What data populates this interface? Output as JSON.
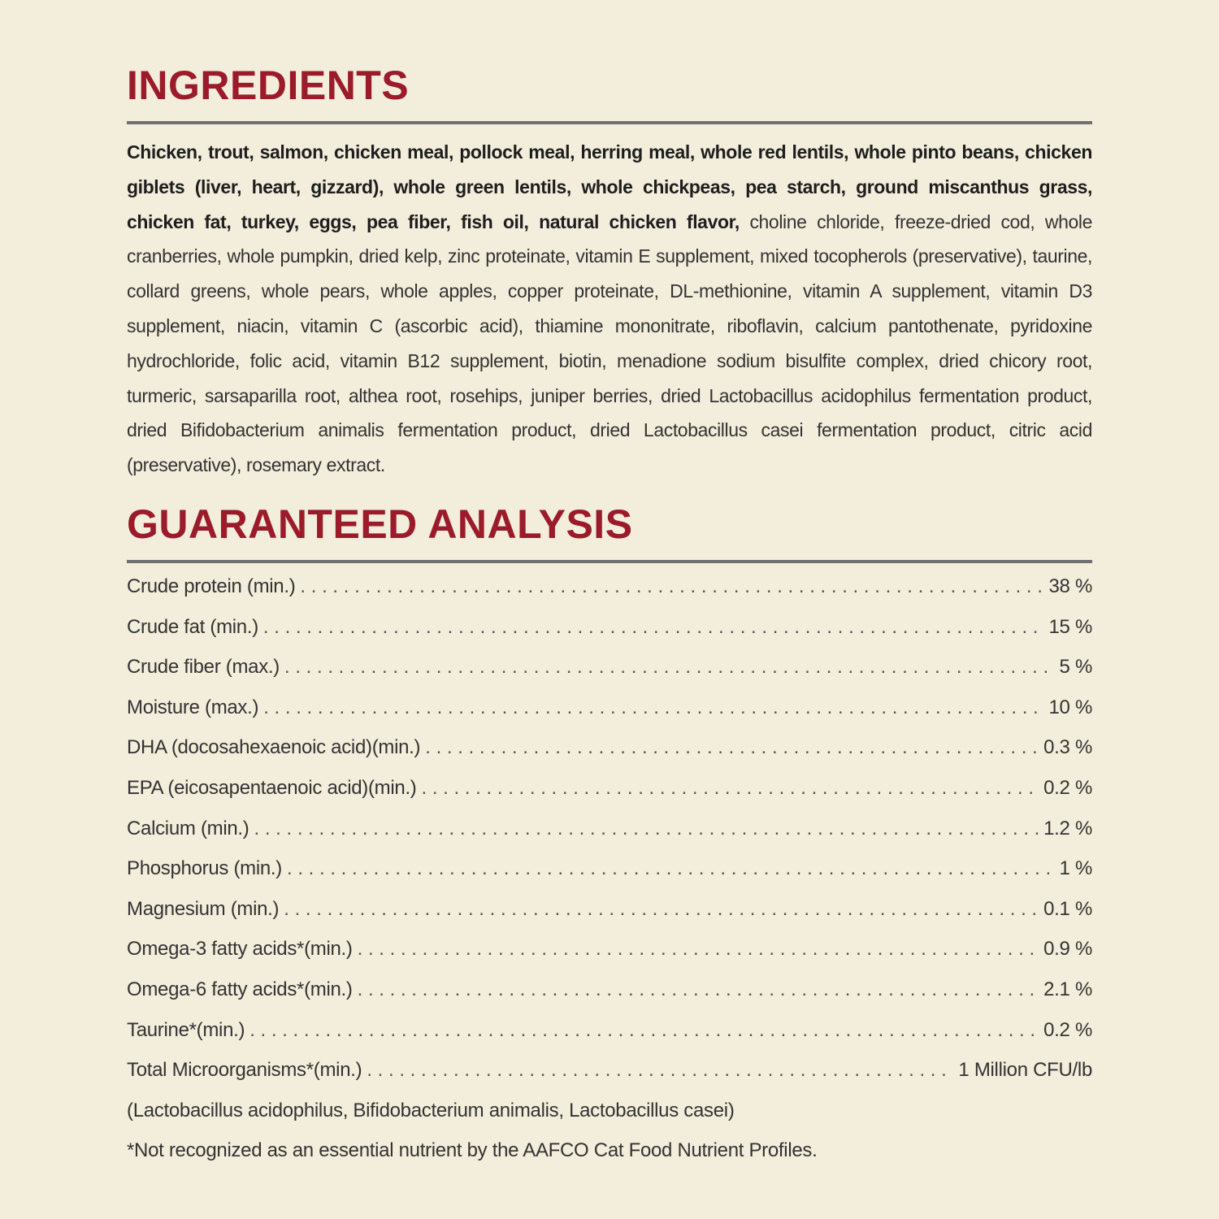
{
  "ingredients": {
    "title": "INGREDIENTS",
    "bold_text": "Chicken, trout, salmon, chicken meal, pollock meal, herring meal, whole red lentils, whole pinto beans, chicken giblets (liver, heart, gizzard), whole green lentils, whole chickpeas, pea starch, ground miscanthus grass, chicken fat, turkey, eggs, pea fiber, fish oil, natural chicken flavor,",
    "regular_text": " choline chloride, freeze-dried cod, whole cranberries, whole pumpkin, dried kelp, zinc proteinate, vitamin E supplement, mixed tocopherols (preservative), taurine, collard greens, whole pears, whole apples, copper proteinate, DL-methionine, vitamin A supplement, vitamin D3 supplement, niacin, vitamin C (ascorbic acid), thiamine mononitrate, riboflavin, calcium pantothenate, pyridoxine hydrochloride, folic acid, vitamin B12 supplement, biotin, menadione sodium bisulfite complex, dried chicory root, turmeric, sarsaparilla root, althea root, rosehips, juniper berries, dried Lactobacillus acidophilus fermentation product, dried Bifidobacterium animalis fermentation product, dried Lactobacillus casei fermentation product, citric acid (preservative), rosemary extract."
  },
  "analysis": {
    "title": "GUARANTEED ANALYSIS",
    "rows": [
      {
        "label": "Crude protein (min.)",
        "value": "38 %"
      },
      {
        "label": "Crude fat (min.)",
        "value": "15 %"
      },
      {
        "label": "Crude fiber (max.)",
        "value": "5 %"
      },
      {
        "label": "Moisture (max.)",
        "value": "10 %"
      },
      {
        "label": "DHA (docosahexaenoic acid)(min.)",
        "value": "0.3 %"
      },
      {
        "label": "EPA (eicosapentaenoic acid)(min.)",
        "value": "0.2 %"
      },
      {
        "label": "Calcium (min.)",
        "value": "1.2 %"
      },
      {
        "label": "Phosphorus (min.)",
        "value": "1 %"
      },
      {
        "label": "Magnesium (min.)",
        "value": "0.1 %"
      },
      {
        "label": "Omega-3 fatty acids*(min.)",
        "value": "0.9 %"
      },
      {
        "label": "Omega-6 fatty acids*(min.)",
        "value": "2.1 %"
      },
      {
        "label": "Taurine*(min.)",
        "value": "0.2 %"
      },
      {
        "label": "Total Microorganisms*(min.)",
        "value": "1 Million CFU/lb"
      }
    ],
    "microorganisms_note": "(Lactobacillus acidophilus, Bifidobacterium animalis, Lactobacillus casei)",
    "footnote": "*Not recognized as an essential nutrient by the AAFCO Cat Food Nutrient Profiles."
  },
  "colors": {
    "heading": "#9b1b2a",
    "rule": "#707070",
    "background": "#f2eedb"
  }
}
